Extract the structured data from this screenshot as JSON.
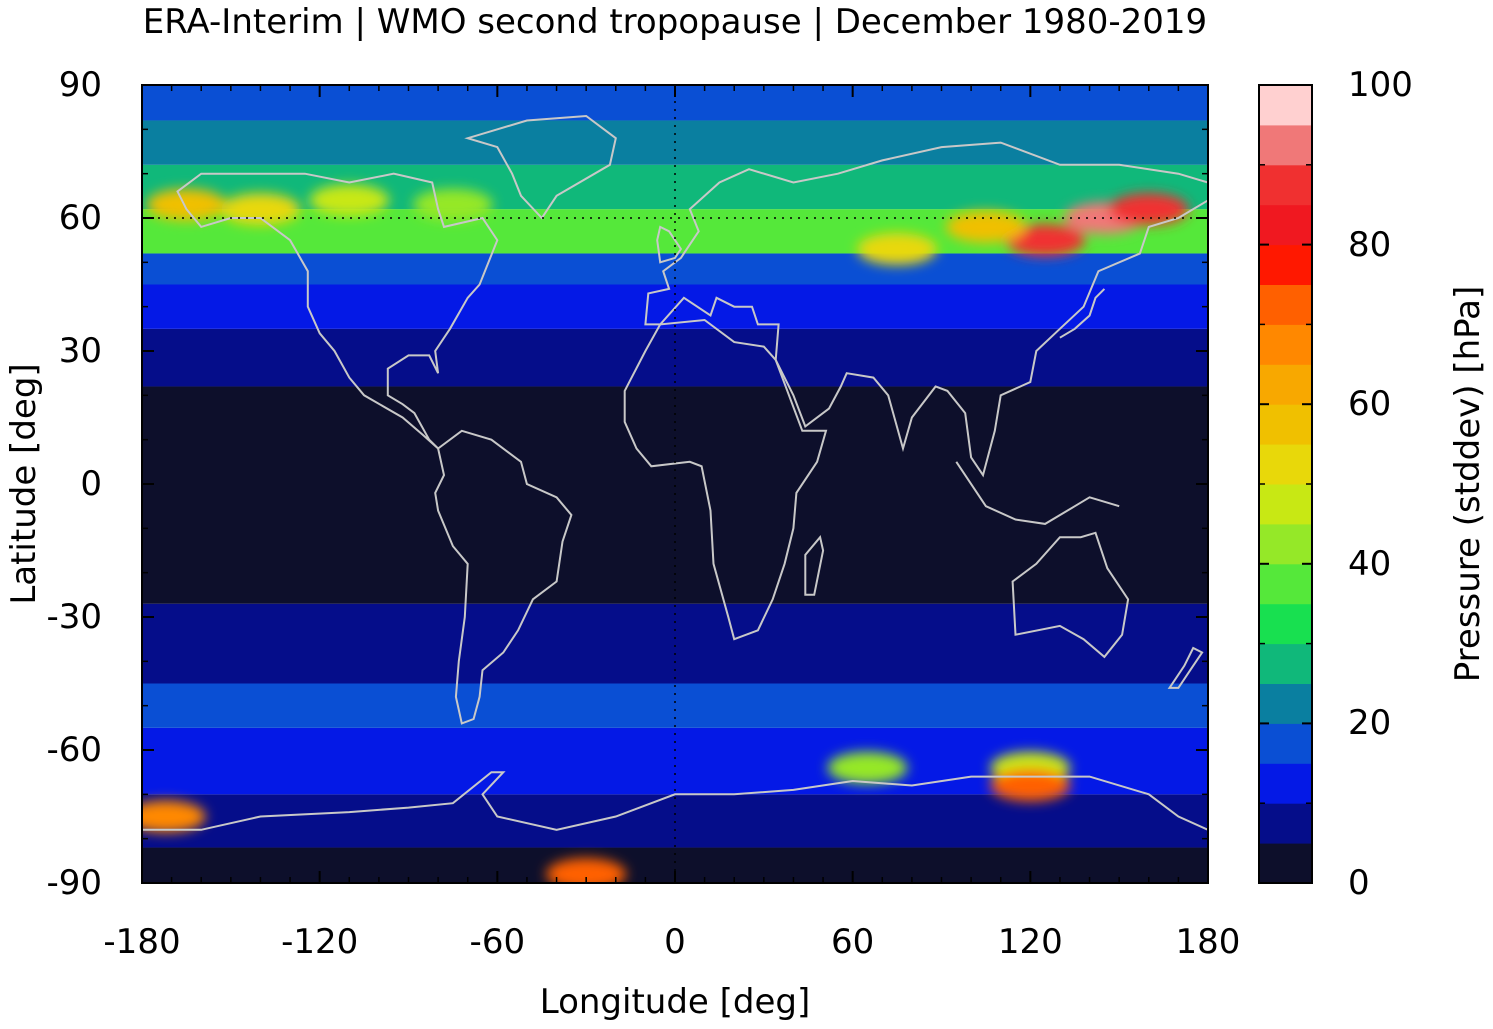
{
  "title": "ERA-Interim | WMO second tropopause | December 1980-2019",
  "x_axis": {
    "label": "Longitude [deg]",
    "range": [
      -180,
      180
    ],
    "ticks": [
      -180,
      -120,
      -60,
      0,
      60,
      120,
      180
    ],
    "tick_labels": [
      "-180",
      "-120",
      "-60",
      "0",
      "60",
      "120",
      "180"
    ]
  },
  "y_axis": {
    "label": "Latitude [deg]",
    "range": [
      -90,
      90
    ],
    "ticks": [
      90,
      60,
      30,
      0,
      -30,
      -60,
      -90
    ],
    "tick_labels": [
      "90",
      "60",
      "30",
      "0",
      "-30",
      "-60",
      "-90"
    ]
  },
  "colorbar": {
    "label": "Pressure (stddev) [hPa]",
    "range": [
      0,
      100
    ],
    "ticks": [
      0,
      20,
      40,
      60,
      80,
      100
    ],
    "tick_labels": [
      "0",
      "20",
      "40",
      "60",
      "80",
      "100"
    ],
    "colors": [
      "#0d0f2b",
      "#050d8a",
      "#0419e6",
      "#0a4fd4",
      "#0a7fa0",
      "#10b87a",
      "#18e050",
      "#55e83a",
      "#95e828",
      "#c8e814",
      "#e8d80a",
      "#f0c000",
      "#f8a800",
      "#ff8800",
      "#ff6000",
      "#ff1800",
      "#f01820",
      "#f03030",
      "#f07878",
      "#ffd0d0"
    ]
  },
  "grid": "dotted at 60N and 0 longitude",
  "field_bands": [
    {
      "lat_min": -90,
      "lat_max": -82,
      "color": "#0d0f2b"
    },
    {
      "lat_min": -82,
      "lat_max": -70,
      "color": "#050d8a"
    },
    {
      "lat_min": -70,
      "lat_max": -55,
      "color": "#0419e6"
    },
    {
      "lat_min": -55,
      "lat_max": -45,
      "color": "#0a4fd4"
    },
    {
      "lat_min": -45,
      "lat_max": -27,
      "color": "#050d8a"
    },
    {
      "lat_min": -27,
      "lat_max": 22,
      "color": "#0d0f2b"
    },
    {
      "lat_min": 22,
      "lat_max": 35,
      "color": "#050d8a"
    },
    {
      "lat_min": 35,
      "lat_max": 45,
      "color": "#0419e6"
    },
    {
      "lat_min": 45,
      "lat_max": 52,
      "color": "#0a4fd4"
    },
    {
      "lat_min": 52,
      "lat_max": 62,
      "color": "#55e83a"
    },
    {
      "lat_min": 62,
      "lat_max": 72,
      "color": "#10b87a"
    },
    {
      "lat_min": 72,
      "lat_max": 82,
      "color": "#0a7fa0"
    },
    {
      "lat_min": 82,
      "lat_max": 90,
      "color": "#0a4fd4"
    }
  ],
  "hotspots": [
    {
      "lon": -165,
      "lat": 63,
      "value": 58
    },
    {
      "lon": -140,
      "lat": 62,
      "value": 50
    },
    {
      "lon": -110,
      "lat": 64,
      "value": 45
    },
    {
      "lon": -75,
      "lat": 63,
      "value": 42
    },
    {
      "lon": 125,
      "lat": 55,
      "value": 88
    },
    {
      "lon": 145,
      "lat": 60,
      "value": 90
    },
    {
      "lon": 160,
      "lat": 62,
      "value": 86
    },
    {
      "lon": 105,
      "lat": 58,
      "value": 55
    },
    {
      "lon": 75,
      "lat": 53,
      "value": 50
    },
    {
      "lon": 120,
      "lat": -64,
      "value": 48
    },
    {
      "lon": 65,
      "lat": -64,
      "value": 42
    },
    {
      "lon": -30,
      "lat": -88,
      "value": 70
    },
    {
      "lon": -172,
      "lat": -75,
      "value": 65
    },
    {
      "lon": 120,
      "lat": -68,
      "value": 70
    }
  ]
}
